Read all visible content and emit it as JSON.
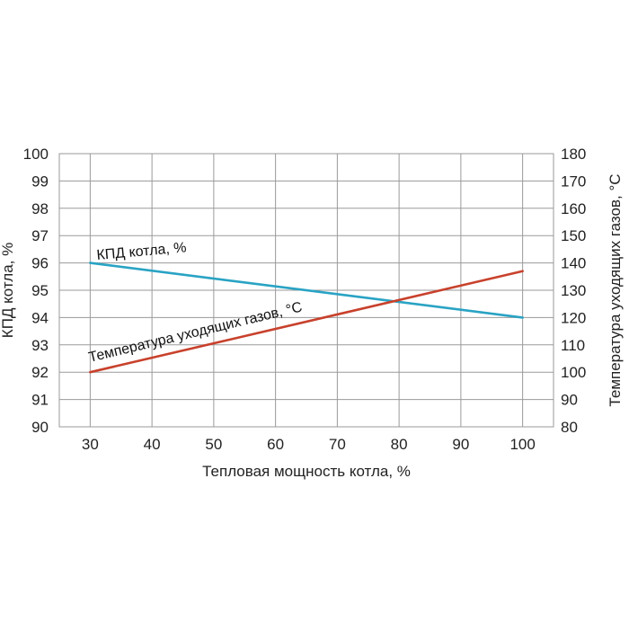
{
  "chart_data": {
    "type": "line",
    "xlabel": "Тепловая мощность котла, %",
    "ylabel": "КПД котла, %",
    "y2label": "Температура уходящих газов, °C",
    "xlim": [
      25,
      105
    ],
    "ylim": [
      90,
      100
    ],
    "y2lim": [
      80,
      180
    ],
    "x_ticks": [
      "30",
      "40",
      "50",
      "60",
      "70",
      "80",
      "90",
      "100"
    ],
    "y_ticks": [
      "90",
      "91",
      "92",
      "93",
      "94",
      "95",
      "96",
      "97",
      "98",
      "99",
      "100"
    ],
    "y2_ticks": [
      "80",
      "90",
      "100",
      "110",
      "120",
      "130",
      "140",
      "150",
      "160",
      "170",
      "180"
    ],
    "grid": true,
    "series": [
      {
        "name": "КПД котла, %",
        "axis": "left",
        "color": "#29a3c4",
        "x": [
          30,
          100
        ],
        "y": [
          96,
          94
        ]
      },
      {
        "name": "Температура уходящих газов, °C",
        "axis": "right",
        "color": "#c8412c",
        "x": [
          30,
          100
        ],
        "y": [
          100,
          137
        ]
      }
    ]
  }
}
